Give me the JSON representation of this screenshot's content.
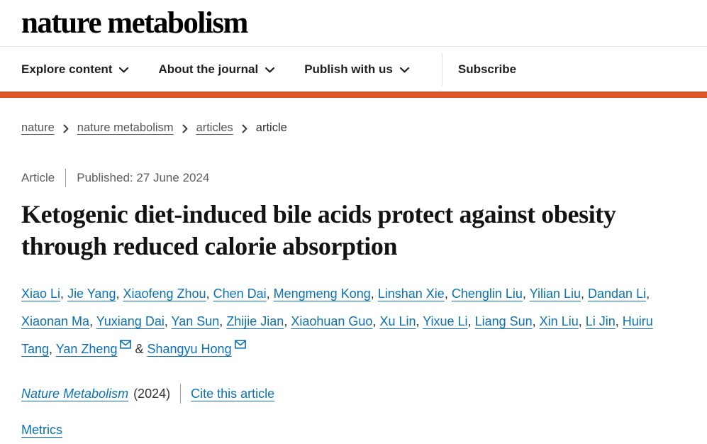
{
  "header": {
    "logo": "nature metabolism"
  },
  "nav": {
    "items": [
      {
        "label": "Explore content"
      },
      {
        "label": "About the journal"
      },
      {
        "label": "Publish with us"
      }
    ],
    "subscribe_label": "Subscribe"
  },
  "breadcrumb": {
    "links": [
      {
        "label": "nature"
      },
      {
        "label": "nature metabolism"
      },
      {
        "label": "articles"
      }
    ],
    "current": "article"
  },
  "meta": {
    "type_label": "Article",
    "published": "Published: 27 June 2024"
  },
  "title": "Ketogenic diet-induced bile acids protect against obesity through reduced calorie absorption",
  "authors": {
    "separator": ",",
    "ampersand": "&",
    "list": [
      {
        "name": "Xiao Li"
      },
      {
        "name": "Jie Yang"
      },
      {
        "name": "Xiaofeng Zhou"
      },
      {
        "name": "Chen Dai"
      },
      {
        "name": "Mengmeng Kong"
      },
      {
        "name": "Linshan Xie"
      },
      {
        "name": "Chenglin Liu"
      },
      {
        "name": "Yilian Liu"
      },
      {
        "name": "Dandan Li"
      },
      {
        "name": "Xiaonan Ma"
      },
      {
        "name": "Yuxiang Dai"
      },
      {
        "name": "Yan Sun"
      },
      {
        "name": "Zhijie Jian"
      },
      {
        "name": "Xiaohuan Guo"
      },
      {
        "name": "Xu Lin"
      },
      {
        "name": "Yixue Li"
      },
      {
        "name": "Liang Sun"
      },
      {
        "name": "Xin Liu"
      },
      {
        "name": "Li Jin"
      },
      {
        "name": "Huiru Tang"
      },
      {
        "name": "Yan Zheng",
        "email": true
      },
      {
        "name": "Shangyu Hong",
        "email": true
      }
    ]
  },
  "citation": {
    "journal": "Nature Metabolism",
    "year": "(2024)",
    "cite_label": "Cite this article"
  },
  "metrics_label": "Metrics",
  "colors": {
    "accent_orange": "#e05428",
    "link_blue": "#0b70b5"
  }
}
